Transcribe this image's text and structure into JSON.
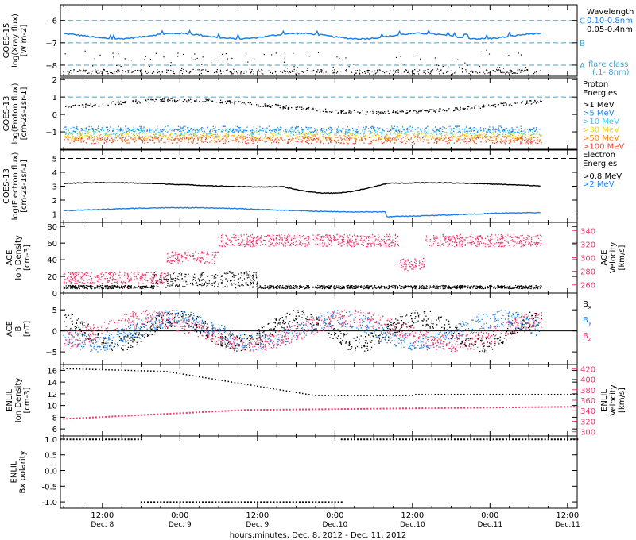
{
  "colors": {
    "black": "#000000",
    "blue": "#1e7fe6",
    "cyan": "#3cc8e6",
    "green": "#49c24a",
    "yellow": "#e6d820",
    "orange": "#f08a1e",
    "red": "#e8432a",
    "pink": "#ec3a6e",
    "dashed_cyan": "#3aa7d6"
  },
  "xaxis": {
    "title": "hours:minutes, Dec. 8, 2012 - Dec. 11, 2012",
    "ticks": [
      {
        "time": "12:00",
        "date": "Dec. 8",
        "hours": 12
      },
      {
        "time": "0:00",
        "date": "Dec. 9",
        "hours": 24
      },
      {
        "time": "12:00",
        "date": "Dec. 9",
        "hours": 36
      },
      {
        "time": "0:00",
        "date": "Dec.10",
        "hours": 48
      },
      {
        "time": "12:00",
        "date": "Dec.10",
        "hours": 60
      },
      {
        "time": "0:00",
        "date": "Dec.11",
        "hours": 72
      },
      {
        "time": "12:00",
        "date": "Dec.11",
        "hours": 84
      }
    ],
    "range_hours": [
      5.5,
      85.5
    ],
    "data_end_hours": 80
  },
  "chart_data": [
    {
      "type": "line",
      "panel": "goes15-xray",
      "ylabel": [
        "GOES-15",
        "log(Xray flux)",
        "[W m-2]"
      ],
      "ylim": [
        -8.5,
        -5.3
      ],
      "yticks": [
        -8,
        -7,
        -6
      ],
      "legend_title": "Wavelength",
      "series": [
        {
          "name": "0.10-0.8nm",
          "color": "#1e7fe6",
          "baseline": -6.7
        },
        {
          "name": "0.05-0.4nm",
          "color": "#000000",
          "baseline": -8.4
        }
      ],
      "flare_levels": [
        {
          "label": "C",
          "value": -6
        },
        {
          "label": "B",
          "value": -7
        },
        {
          "label": "A",
          "value": -8
        }
      ],
      "flare_class_label": [
        "flare class",
        "(.1-.8nm)"
      ]
    },
    {
      "type": "scatter",
      "panel": "goes13-proton",
      "ylabel": [
        "GOES-13",
        "log(Proton flux)",
        "[cm-2s-1sr-1]"
      ],
      "ylim": [
        -2,
        2.1
      ],
      "yticks": [
        -1,
        0,
        1,
        2
      ],
      "reference_line": 1,
      "legend_title": [
        "Proton",
        "Energies"
      ],
      "series": [
        {
          "name": ">1 MeV",
          "color": "#000000",
          "baseline": 0.5
        },
        {
          "name": ">5 MeV",
          "color": "#1e7fe6",
          "baseline": -0.85
        },
        {
          "name": ">10 MeV",
          "color": "#3cc8e6",
          "baseline": -1.0
        },
        {
          "name": ">30 MeV",
          "color": "#e6d820",
          "baseline": -1.2
        },
        {
          "name": ">50 MeV",
          "color": "#f08a1e",
          "baseline": -1.35
        },
        {
          "name": ">100 MeV",
          "color": "#e8432a",
          "baseline": -1.5
        }
      ]
    },
    {
      "type": "line",
      "panel": "goes13-electron",
      "ylabel": [
        "GOES-13",
        "log(Electron flux)",
        "[cm-2s-1sr-1]"
      ],
      "ylim": [
        0.4,
        5.6
      ],
      "yticks": [
        1,
        2,
        3,
        4,
        5
      ],
      "reference_line": 5,
      "legend_title": [
        "Electron",
        "Energies"
      ],
      "series": [
        {
          "name": ">0.8 MeV",
          "color": "#000000",
          "baseline": 3.0
        },
        {
          "name": ">2 MeV",
          "color": "#1e7fe6",
          "baseline": 1.3
        }
      ]
    },
    {
      "type": "scatter",
      "panel": "ace-plasma",
      "ylabel": [
        "ACE",
        "Ion Density",
        "[cm-3]"
      ],
      "ylabel_right": [
        "ACE",
        "Velocity",
        "[km/s]"
      ],
      "ylim": [
        0,
        85
      ],
      "yticks": [
        0,
        20,
        40,
        60,
        80
      ],
      "ylim_right": [
        248,
        352
      ],
      "yticks_right": [
        260,
        280,
        300,
        320,
        340
      ],
      "series": [
        {
          "name": "density",
          "color": "#000000"
        },
        {
          "name": "velocity",
          "color": "#ec3a6e",
          "axis": "right"
        }
      ]
    },
    {
      "type": "scatter",
      "panel": "ace-mag",
      "ylabel": [
        "ACE",
        "B",
        "[nT]"
      ],
      "ylim": [
        -8,
        9
      ],
      "yticks": [
        -5,
        0,
        5
      ],
      "zero_line": 0,
      "series": [
        {
          "name": "Bx",
          "sub": "x",
          "color": "#000000"
        },
        {
          "name": "By",
          "sub": "y",
          "color": "#1e7fe6"
        },
        {
          "name": "Bz",
          "sub": "z",
          "color": "#ec3a6e"
        }
      ]
    },
    {
      "type": "line",
      "panel": "enlil-plasma",
      "ylabel": [
        "ENLIL",
        "Ion Density",
        "[cm-3]"
      ],
      "ylabel_right": [
        "ENLIL",
        "Velocity",
        "[km/s]"
      ],
      "ylim": [
        4.8,
        17
      ],
      "yticks": [
        6,
        8,
        10,
        12,
        14,
        16
      ],
      "ylim_right": [
        292,
        428
      ],
      "yticks_right": [
        300,
        320,
        340,
        360,
        380,
        400,
        420
      ],
      "series": [
        {
          "name": "density",
          "color": "#000000"
        },
        {
          "name": "velocity",
          "color": "#ec3a6e",
          "axis": "right"
        }
      ]
    },
    {
      "type": "scatter",
      "panel": "enlil-polarity",
      "ylabel": [
        "ENLIL",
        "Bx polarity"
      ],
      "ylim": [
        -1.2,
        1.1
      ],
      "yticks": [
        -1.0,
        -0.5,
        0.0,
        0.5,
        1.0
      ],
      "segments": [
        {
          "from_hours": 5.5,
          "to_hours": 18,
          "value": 1.0
        },
        {
          "from_hours": 18,
          "to_hours": 49,
          "value": -1.0
        },
        {
          "from_hours": 49,
          "to_hours": 85.5,
          "value": 1.0
        }
      ]
    }
  ]
}
